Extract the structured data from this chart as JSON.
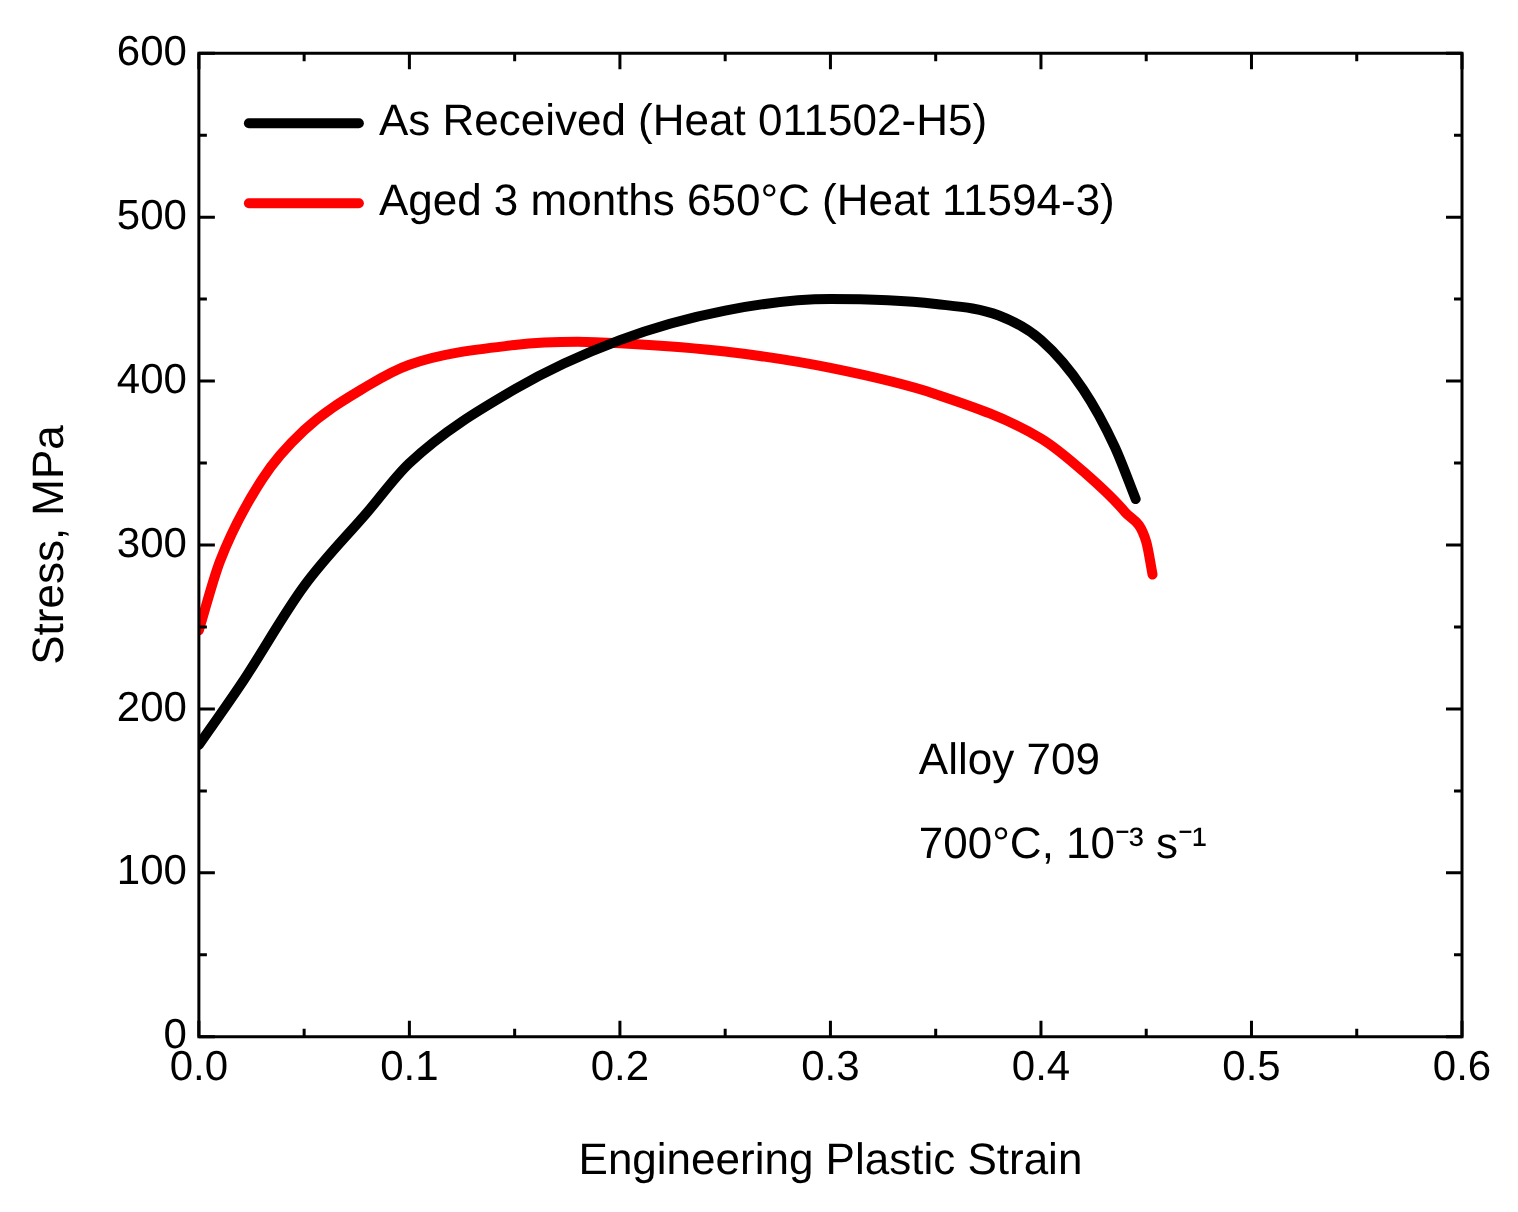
{
  "chart_data": {
    "type": "line",
    "xlabel": "Engineering Plastic Strain",
    "ylabel": "Stress, MPa",
    "xlim": [
      0,
      0.6
    ],
    "xticks": [
      {
        "value": 0,
        "label": "0.0"
      },
      0.1,
      0.2,
      0.3,
      0.4,
      0.5,
      0.6
    ],
    "ylim": [
      0,
      600
    ],
    "yticks": [
      0,
      100,
      200,
      300,
      400,
      500,
      600
    ],
    "grid": false,
    "legend": "top left",
    "marker": "none",
    "line_style": "solid",
    "annotations": [
      "Alloy 709",
      "700°C, 10⁻³ s⁻¹"
    ],
    "series": [
      {
        "name": "As Received (Heat 011502-H5)",
        "color": "#000000",
        "x": [
          0,
          0.02,
          0.05,
          0.08,
          0.1,
          0.15,
          0.2,
          0.25,
          0.3,
          0.35,
          0.38,
          0.4,
          0.42,
          0.435,
          0.445
        ],
        "values": [
          178,
          215,
          275,
          320,
          350,
          395,
          425,
          443,
          450,
          447,
          440,
          425,
          395,
          360,
          328
        ]
      },
      {
        "name": "Aged 3 months 650°C (Heat 11594-3)",
        "color": "#ff0000",
        "x": [
          0,
          0.01,
          0.03,
          0.05,
          0.08,
          0.1,
          0.15,
          0.18,
          0.2,
          0.25,
          0.3,
          0.35,
          0.4,
          0.42,
          0.44,
          0.45,
          0.453
        ],
        "values": [
          248,
          290,
          340,
          370,
          397,
          410,
          422,
          424,
          423,
          418,
          408,
          392,
          365,
          345,
          320,
          302,
          282
        ]
      }
    ]
  }
}
